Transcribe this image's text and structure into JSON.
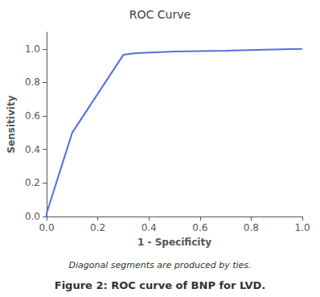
{
  "chart_data": {
    "type": "line",
    "title": "ROC Curve",
    "xlabel": "1 - Specificity",
    "ylabel": "Sensitivity",
    "x": [
      0.0,
      0.0,
      0.1,
      0.3,
      0.35,
      0.5,
      0.7,
      0.85,
      1.0
    ],
    "values": [
      0.0,
      0.02,
      0.5,
      0.965,
      0.975,
      0.985,
      0.99,
      0.995,
      1.0
    ],
    "xlim": [
      0,
      1
    ],
    "ylim": [
      0,
      1.1
    ],
    "xticks": [
      {
        "value": 0,
        "label": "0.0"
      },
      0.2,
      0.4,
      0.6,
      0.8,
      {
        "value": 1,
        "label": "1.0"
      }
    ],
    "yticks": [
      {
        "value": 0,
        "label": "0.0"
      },
      0.2,
      0.4,
      0.6,
      0.8,
      {
        "value": 1,
        "label": "1.0"
      }
    ],
    "grid": false,
    "annotations": [
      "Diagonal segments are produced by ties.",
      "Figure 2: ROC curve of BNP for LVD."
    ]
  }
}
